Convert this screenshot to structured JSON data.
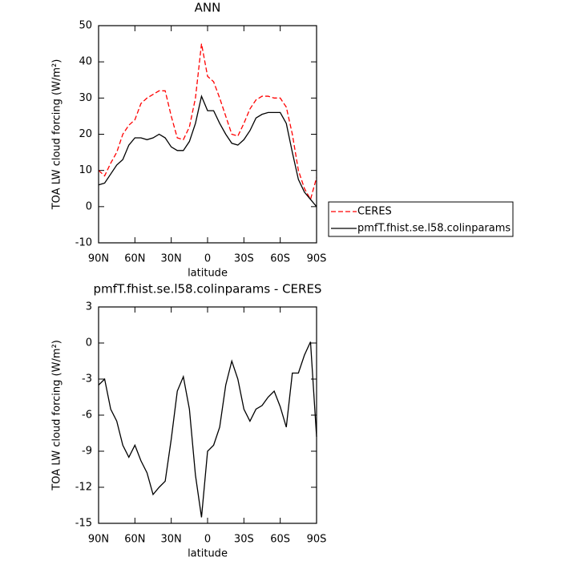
{
  "chart_data": [
    {
      "type": "line",
      "title": "ANN",
      "x_label": "latitude",
      "y_label": "TOA LW cloud forcing (W/m²)",
      "x": [
        90,
        85,
        80,
        75,
        70,
        65,
        60,
        55,
        50,
        45,
        40,
        35,
        30,
        25,
        20,
        15,
        10,
        5,
        0,
        -5,
        -10,
        -15,
        -20,
        -25,
        -30,
        -35,
        -40,
        -45,
        -50,
        -55,
        -60,
        -65,
        -70,
        -75,
        -80,
        -85,
        -90
      ],
      "series": [
        {
          "name": "CERES",
          "color": "#ff0000",
          "dash": true,
          "values": [
            10,
            8.5,
            12,
            15,
            20,
            22.5,
            24,
            28.5,
            30,
            31,
            32,
            32,
            25,
            19,
            18.5,
            22,
            30,
            45,
            36,
            34.5,
            30,
            25,
            20,
            19.5,
            23,
            27,
            29.5,
            30.5,
            30.5,
            30,
            30,
            27.5,
            20,
            10,
            5,
            2,
            8
          ]
        },
        {
          "name": "pmfT.fhist.se.l58.colinparams",
          "color": "#000000",
          "dash": false,
          "values": [
            6,
            6.5,
            9,
            11.5,
            13,
            17,
            19,
            19,
            18.5,
            19,
            20,
            19,
            16.5,
            15.5,
            15.5,
            18,
            23,
            30.5,
            26.5,
            26.5,
            23,
            20,
            17.5,
            17,
            18.5,
            21,
            24.5,
            25.5,
            26,
            26,
            26,
            23,
            15,
            7.5,
            4,
            2,
            0
          ]
        }
      ],
      "xlim": [
        90,
        -90
      ],
      "xticks": [
        {
          "value": 90,
          "label": "90N"
        },
        {
          "value": 60,
          "label": "60N"
        },
        {
          "value": 30,
          "label": "30N"
        },
        0,
        {
          "value": -30,
          "label": "30S"
        },
        {
          "value": -60,
          "label": "60S"
        },
        {
          "value": -90,
          "label": "90S"
        }
      ],
      "ylim": [
        -10,
        50
      ],
      "yticks": [
        -10,
        0,
        10,
        20,
        30,
        40,
        50
      ],
      "legend": "right"
    },
    {
      "type": "line",
      "title": "pmfT.fhist.se.l58.colinparams - CERES",
      "x_label": "latitude",
      "y_label": "TOA LW cloud forcing (W/m²)",
      "x": [
        90,
        85,
        80,
        75,
        70,
        65,
        60,
        55,
        50,
        45,
        40,
        35,
        30,
        25,
        20,
        15,
        10,
        5,
        0,
        -5,
        -10,
        -15,
        -20,
        -25,
        -30,
        -35,
        -40,
        -45,
        -50,
        -55,
        -60,
        -65,
        -70,
        -75,
        -80,
        -85,
        -90
      ],
      "series": [
        {
          "color": "#000000",
          "dash": false,
          "values": [
            -3.5,
            -3,
            -5.5,
            -6.5,
            -8.5,
            -9.5,
            -8.5,
            -9.8,
            -10.8,
            -12.6,
            -12,
            -11.5,
            -8,
            -4,
            -2.8,
            -5.5,
            -11,
            -14.5,
            -9,
            -8.5,
            -7,
            -3.5,
            -1.5,
            -3,
            -5.5,
            -6.5,
            -5.5,
            -5.2,
            -4.5,
            -4,
            -5.3,
            -7,
            -2.5,
            -2.5,
            -1,
            0.1,
            -7.8
          ]
        }
      ],
      "xlim": [
        90,
        -90
      ],
      "xticks": [
        {
          "value": 90,
          "label": "90N"
        },
        {
          "value": 60,
          "label": "60N"
        },
        {
          "value": 30,
          "label": "30N"
        },
        0,
        {
          "value": -30,
          "label": "30S"
        },
        {
          "value": -60,
          "label": "60S"
        },
        {
          "value": -90,
          "label": "90S"
        }
      ],
      "ylim": [
        -15,
        3
      ],
      "yticks": [
        -15,
        -12,
        -9,
        -6,
        -3,
        0,
        3
      ]
    }
  ]
}
